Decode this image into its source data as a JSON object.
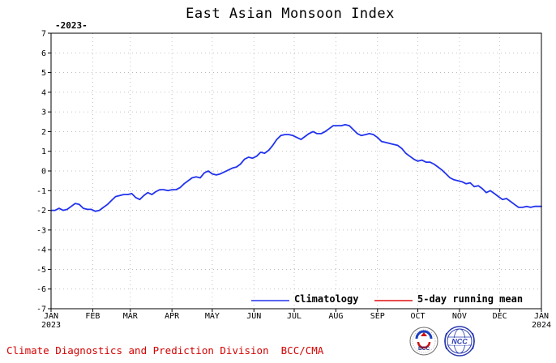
{
  "chart_data": {
    "type": "line",
    "title": "East Asian Monsoon Index",
    "year_label": "-2023-",
    "ylim": [
      -7,
      7
    ],
    "yticks": [
      -7,
      -6,
      -5,
      -4,
      -3,
      -2,
      -1,
      0,
      1,
      2,
      3,
      4,
      5,
      6,
      7
    ],
    "xlim_days": [
      0,
      365
    ],
    "xticks": [
      {
        "label": "JAN",
        "sublabel": "2023",
        "day": 0
      },
      {
        "label": "FEB",
        "day": 31
      },
      {
        "label": "MAR",
        "day": 59
      },
      {
        "label": "APR",
        "day": 90
      },
      {
        "label": "MAY",
        "day": 120
      },
      {
        "label": "JUN",
        "day": 151
      },
      {
        "label": "JUL",
        "day": 181
      },
      {
        "label": "AUG",
        "day": 212
      },
      {
        "label": "SEP",
        "day": 243
      },
      {
        "label": "OCT",
        "day": 273
      },
      {
        "label": "NOV",
        "day": 304
      },
      {
        "label": "DEC",
        "day": 334
      },
      {
        "label": "JAN",
        "sublabel": "2024",
        "day": 365
      }
    ],
    "grid": true,
    "legend_position": "bottom-right",
    "series": [
      {
        "name": "Climatology",
        "color": "#2233ee",
        "x": [
          0,
          3,
          6,
          9,
          12,
          15,
          18,
          21,
          24,
          27,
          30,
          33,
          36,
          39,
          42,
          45,
          48,
          51,
          54,
          57,
          60,
          63,
          66,
          69,
          72,
          75,
          78,
          81,
          84,
          87,
          90,
          93,
          96,
          99,
          102,
          105,
          108,
          111,
          114,
          117,
          120,
          123,
          126,
          129,
          132,
          135,
          138,
          141,
          144,
          147,
          150,
          153,
          156,
          159,
          162,
          165,
          168,
          171,
          174,
          177,
          180,
          183,
          186,
          189,
          192,
          195,
          198,
          201,
          204,
          207,
          210,
          213,
          216,
          219,
          222,
          225,
          228,
          231,
          234,
          237,
          240,
          243,
          246,
          249,
          252,
          255,
          258,
          261,
          264,
          267,
          270,
          273,
          276,
          279,
          282,
          285,
          288,
          291,
          294,
          297,
          300,
          303,
          306,
          309,
          312,
          315,
          318,
          321,
          324,
          327,
          330,
          333,
          336,
          339,
          342,
          345,
          348,
          351,
          354,
          357,
          360,
          363,
          365
        ],
        "values": [
          -2.0,
          -2.0,
          -1.9,
          -2.0,
          -1.95,
          -1.8,
          -1.65,
          -1.7,
          -1.9,
          -1.95,
          -1.95,
          -2.05,
          -2.0,
          -1.85,
          -1.7,
          -1.5,
          -1.3,
          -1.25,
          -1.2,
          -1.2,
          -1.15,
          -1.35,
          -1.45,
          -1.25,
          -1.1,
          -1.2,
          -1.05,
          -0.95,
          -0.95,
          -1.0,
          -0.95,
          -0.95,
          -0.85,
          -0.65,
          -0.5,
          -0.35,
          -0.3,
          -0.35,
          -0.1,
          0.0,
          -0.15,
          -0.2,
          -0.15,
          -0.05,
          0.05,
          0.15,
          0.2,
          0.35,
          0.6,
          0.7,
          0.65,
          0.75,
          0.95,
          0.9,
          1.05,
          1.3,
          1.6,
          1.8,
          1.85,
          1.85,
          1.8,
          1.7,
          1.6,
          1.75,
          1.9,
          2.0,
          1.9,
          1.9,
          2.0,
          2.15,
          2.3,
          2.3,
          2.3,
          2.35,
          2.3,
          2.1,
          1.9,
          1.8,
          1.85,
          1.9,
          1.85,
          1.7,
          1.5,
          1.45,
          1.4,
          1.35,
          1.3,
          1.15,
          0.9,
          0.75,
          0.6,
          0.5,
          0.55,
          0.45,
          0.45,
          0.35,
          0.2,
          0.05,
          -0.15,
          -0.35,
          -0.45,
          -0.5,
          -0.55,
          -0.65,
          -0.6,
          -0.8,
          -0.75,
          -0.9,
          -1.1,
          -1.0,
          -1.15,
          -1.3,
          -1.45,
          -1.4,
          -1.55,
          -1.7,
          -1.85,
          -1.85,
          -1.8,
          -1.85,
          -1.8,
          -1.8,
          -1.8
        ]
      },
      {
        "name": "5-day running mean",
        "color": "#e01010",
        "x": [],
        "values": []
      }
    ]
  },
  "footer": {
    "text": "Climate Diagnostics and Prediction Division  BCC/CMA"
  },
  "logos": {
    "left_text": "BCC",
    "right_text": "NCC"
  }
}
